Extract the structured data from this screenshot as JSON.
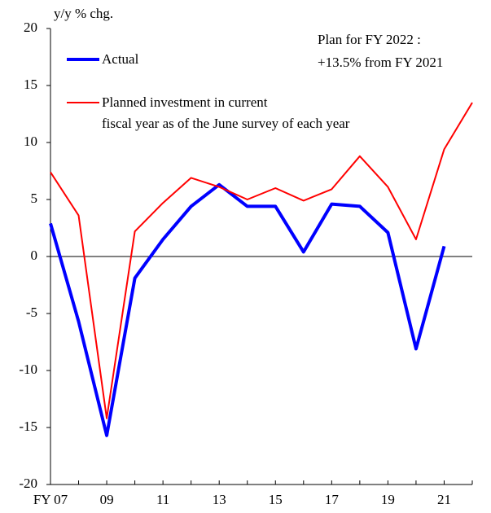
{
  "chart_data": {
    "type": "line",
    "y_label": "y/y % chg.",
    "annotations": [
      "Plan for FY 2022 :",
      "+13.5% from FY 2021"
    ],
    "categories": [
      "FY 07",
      null,
      "09",
      null,
      "11",
      null,
      "13",
      null,
      "15",
      null,
      "17",
      null,
      "19",
      null,
      "21",
      null
    ],
    "series": [
      {
        "name": "Actual",
        "color": "#0000ff",
        "values": [
          2.9,
          -5.7,
          -15.7,
          -1.9,
          1.5,
          4.4,
          6.3,
          4.4,
          4.4,
          0.4,
          4.6,
          4.4,
          2.1,
          -8.1,
          0.9,
          null
        ]
      },
      {
        "name": "Planned investment in current\nfiscal year as of the June survey of each year",
        "color": "#ff0000",
        "values": [
          7.4,
          3.6,
          -14.2,
          2.2,
          4.7,
          6.9,
          6.1,
          5.0,
          6.0,
          4.9,
          5.9,
          8.8,
          6.1,
          1.5,
          9.4,
          13.5
        ]
      }
    ],
    "ylim": [
      -20,
      20
    ],
    "yticks": [
      -20,
      -15,
      -10,
      -5,
      0,
      5,
      10,
      15,
      20
    ],
    "grid": false
  }
}
